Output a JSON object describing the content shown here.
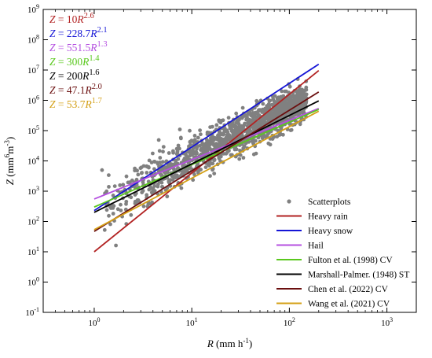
{
  "chart_data": {
    "type": "scatter",
    "x_scale": "log",
    "y_scale": "log",
    "xlim": [
      0.3,
      2000
    ],
    "ylim": [
      0.1,
      1000000000
    ],
    "x_ticks": [
      {
        "value": 1,
        "label_base": "10",
        "label_exp": "0"
      },
      {
        "value": 10,
        "label_base": "10",
        "label_exp": "1"
      },
      {
        "value": 100,
        "label_base": "10",
        "label_exp": "2"
      },
      {
        "value": 1000,
        "label_base": "10",
        "label_exp": "3"
      }
    ],
    "y_ticks": [
      {
        "value": 0.1,
        "label_base": "10",
        "label_exp": "-1"
      },
      {
        "value": 1,
        "label_base": "10",
        "label_exp": "0"
      },
      {
        "value": 10,
        "label_base": "10",
        "label_exp": "1"
      },
      {
        "value": 100,
        "label_base": "10",
        "label_exp": "2"
      },
      {
        "value": 1000,
        "label_base": "10",
        "label_exp": "3"
      },
      {
        "value": 10000,
        "label_base": "10",
        "label_exp": "4"
      },
      {
        "value": 100000,
        "label_base": "10",
        "label_exp": "5"
      },
      {
        "value": 1000000,
        "label_base": "10",
        "label_exp": "6"
      },
      {
        "value": 10000000,
        "label_base": "10",
        "label_exp": "7"
      },
      {
        "value": 100000000,
        "label_base": "10",
        "label_exp": "8"
      },
      {
        "value": 1000000000,
        "label_base": "10",
        "label_exp": "9"
      }
    ],
    "xlabel": {
      "main": "R",
      "unit": "(mm h",
      "unit_exp": "-1",
      "unit_close": ")"
    },
    "ylabel": {
      "main": "Z",
      "unit": "(mm",
      "unit_exp1": "6",
      "unit_mid": "m",
      "unit_exp2": "-3",
      "unit_close": ")"
    },
    "grid": false,
    "legend_position": "bottom-right",
    "scatter": {
      "name": "Scatterplots",
      "color": "#808080",
      "x_range": [
        1.1,
        150
      ],
      "relation": {
        "a": 220,
        "b": 1.7
      },
      "spread_log10": 0.5
    },
    "series": [
      {
        "name": "Heavy rain",
        "color": "#b22222",
        "a": 10,
        "b": 2.6,
        "eq_prefix": "Z = 10R",
        "eq_exp": "2.6",
        "x_range": [
          1,
          200
        ]
      },
      {
        "name": "Heavy snow",
        "color": "#1515d6",
        "a": 228.7,
        "b": 2.1,
        "eq_prefix": "Z = 228.7R",
        "eq_exp": "2.1",
        "x_range": [
          1,
          200
        ]
      },
      {
        "name": "Hail",
        "color": "#b44fe0",
        "a": 551.5,
        "b": 1.3,
        "eq_prefix": "Z = 551.5R",
        "eq_exp": "1.3",
        "x_range": [
          1,
          200
        ]
      },
      {
        "name": "Fulton et al. (1998) CV",
        "color": "#5ac81e",
        "a": 300,
        "b": 1.4,
        "eq_prefix": "Z = 300R",
        "eq_exp": "1.4",
        "x_range": [
          1,
          200
        ]
      },
      {
        "name": "Marshall-Palmer. (1948) ST",
        "color": "#000000",
        "a": 200,
        "b": 1.6,
        "eq_prefix": "Z = 200R",
        "eq_exp": "1.6",
        "x_range": [
          1,
          200
        ]
      },
      {
        "name": "Chen et al. (2022) CV",
        "color": "#6b0f0f",
        "a": 47.1,
        "b": 2.0,
        "eq_prefix": "Z = 47.1R",
        "eq_exp": "2.0",
        "x_range": [
          1,
          200
        ]
      },
      {
        "name": "Wang et al. (2021) CV",
        "color": "#d4a017",
        "a": 53.7,
        "b": 1.7,
        "eq_prefix": "Z = 53.7R",
        "eq_exp": "1.7",
        "x_range": [
          1,
          200
        ]
      }
    ]
  }
}
